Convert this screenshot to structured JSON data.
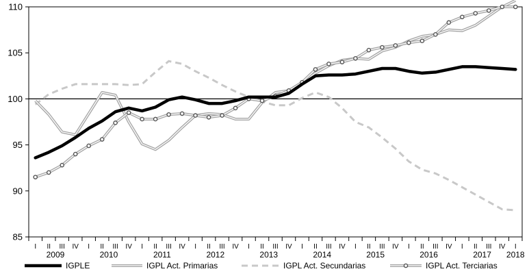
{
  "chart_data": {
    "type": "line",
    "title": "",
    "xlabel": "",
    "ylabel": "",
    "ylim": [
      85,
      110
    ],
    "yticks": [
      85,
      90,
      95,
      100,
      105,
      110
    ],
    "grid": false,
    "baseline": 100,
    "legend_position": "bottom",
    "quarter_labels": [
      "I",
      "II",
      "III",
      "IV"
    ],
    "years": [
      "2009",
      "2010",
      "2011",
      "2012",
      "2013",
      "2014",
      "2015",
      "2016",
      "2017",
      "2018"
    ],
    "x": [
      "2009-I",
      "2009-II",
      "2009-III",
      "2009-IV",
      "2010-I",
      "2010-II",
      "2010-III",
      "2010-IV",
      "2011-I",
      "2011-II",
      "2011-III",
      "2011-IV",
      "2012-I",
      "2012-II",
      "2012-III",
      "2012-IV",
      "2013-I",
      "2013-II",
      "2013-III",
      "2013-IV",
      "2014-I",
      "2014-II",
      "2014-III",
      "2014-IV",
      "2015-I",
      "2015-II",
      "2015-III",
      "2015-IV",
      "2016-I",
      "2016-II",
      "2016-III",
      "2016-IV",
      "2017-I",
      "2017-II",
      "2017-III",
      "2017-IV",
      "2018-I"
    ],
    "series": [
      {
        "name": "IGPLE",
        "color": "#000000",
        "style": "solid-thick",
        "values": [
          93.6,
          94.2,
          94.9,
          95.8,
          96.8,
          97.6,
          98.6,
          99.0,
          98.7,
          99.1,
          99.9,
          100.2,
          99.9,
          99.5,
          99.5,
          99.8,
          100.2,
          100.2,
          100.2,
          100.6,
          101.6,
          102.5,
          102.6,
          102.6,
          102.7,
          103.0,
          103.3,
          103.3,
          103.0,
          102.8,
          102.9,
          103.2,
          103.5,
          103.5,
          103.4,
          103.3,
          103.2
        ]
      },
      {
        "name": "IGPL Act. Primarias",
        "color": "#a6a6a6",
        "style": "double",
        "values": [
          99.8,
          98.3,
          96.4,
          96.1,
          98.4,
          100.7,
          100.4,
          97.5,
          95.1,
          94.5,
          95.5,
          96.9,
          98.2,
          98.4,
          98.3,
          97.8,
          97.8,
          99.6,
          100.7,
          100.9,
          101.8,
          102.8,
          103.6,
          104.2,
          104.4,
          104.3,
          105.2,
          105.6,
          106.3,
          106.8,
          107.0,
          107.5,
          107.4,
          108.0,
          109.0,
          110.0,
          110.7
        ]
      },
      {
        "name": "IGPL Act. Secundarias",
        "color": "#c8c8c8",
        "style": "dashed",
        "values": [
          99.4,
          100.5,
          101.1,
          101.6,
          101.6,
          101.6,
          101.6,
          101.5,
          101.6,
          102.9,
          104.1,
          103.8,
          103.0,
          102.3,
          101.5,
          100.8,
          100.2,
          99.7,
          99.3,
          99.3,
          100.1,
          100.7,
          100.2,
          99.0,
          97.5,
          96.9,
          95.8,
          94.6,
          93.2,
          92.3,
          91.9,
          91.2,
          90.4,
          89.6,
          88.8,
          88.0,
          87.9
        ]
      },
      {
        "name": "IGPL Act. Terciarias",
        "color": "#a6a6a6",
        "style": "double-marker",
        "values": [
          91.5,
          92.0,
          92.8,
          94.0,
          94.9,
          95.6,
          97.4,
          98.5,
          97.8,
          97.8,
          98.3,
          98.4,
          98.2,
          98.0,
          98.2,
          99.0,
          100.0,
          99.8,
          100.3,
          100.9,
          101.8,
          103.2,
          103.8,
          104.0,
          104.4,
          105.3,
          105.6,
          105.8,
          106.1,
          106.3,
          107.0,
          108.3,
          108.9,
          109.3,
          109.6,
          110.0,
          110.0
        ]
      }
    ]
  }
}
